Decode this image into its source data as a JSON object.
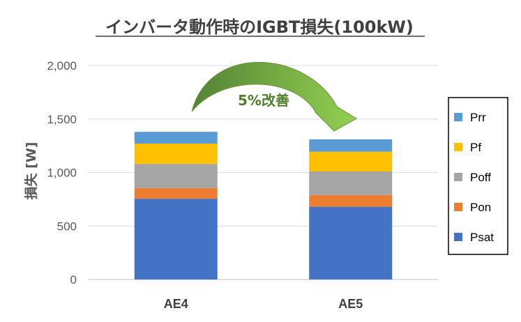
{
  "chart_data": {
    "type": "bar",
    "stacked": true,
    "title": "インバータ動作時のIGBT損失(100kW)",
    "ylabel": "損失 [W]",
    "xlabel": "",
    "categories": [
      "AE4",
      "AE5"
    ],
    "ylim": [
      0,
      2000
    ],
    "yticks": [
      0,
      500,
      1000,
      1500,
      2000
    ],
    "ytick_labels": [
      "0",
      "500",
      "1,000",
      "1,500",
      "2,000"
    ],
    "grid": true,
    "legend_position": "right",
    "series": [
      {
        "name": "Psat",
        "color": "#4472c4",
        "values": [
          755,
          680
        ]
      },
      {
        "name": "Pon",
        "color": "#ed7d31",
        "values": [
          100,
          110
        ]
      },
      {
        "name": "Poff",
        "color": "#a5a5a5",
        "values": [
          225,
          220
        ]
      },
      {
        "name": "Pf",
        "color": "#ffc000",
        "values": [
          190,
          185
        ]
      },
      {
        "name": "Prr",
        "color": "#5b9bd5",
        "values": [
          110,
          115
        ]
      }
    ],
    "annotation": {
      "text": "5%改善",
      "color": "#4f7f2a"
    }
  }
}
